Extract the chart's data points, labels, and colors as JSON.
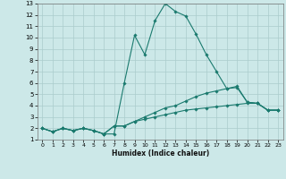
{
  "xlabel": "Humidex (Indice chaleur)",
  "ylabel": "",
  "xlim": [
    -0.5,
    23.5
  ],
  "ylim": [
    1,
    13
  ],
  "xticks": [
    0,
    1,
    2,
    3,
    4,
    5,
    6,
    7,
    8,
    9,
    10,
    11,
    12,
    13,
    14,
    15,
    16,
    17,
    18,
    19,
    20,
    21,
    22,
    23
  ],
  "yticks": [
    1,
    2,
    3,
    4,
    5,
    6,
    7,
    8,
    9,
    10,
    11,
    12,
    13
  ],
  "bg_color": "#cce8e8",
  "grid_color": "#aacccc",
  "line_color": "#1a7a6e",
  "lines": [
    [
      2.0,
      1.7,
      2.0,
      1.8,
      2.0,
      1.8,
      1.5,
      1.5,
      6.0,
      10.2,
      8.5,
      11.5,
      13.0,
      12.3,
      11.9,
      10.3,
      8.5,
      7.0,
      5.5,
      5.7,
      4.3,
      4.2,
      3.6,
      3.6
    ],
    [
      2.0,
      1.7,
      2.0,
      1.8,
      2.0,
      1.8,
      1.5,
      2.2,
      2.2,
      2.6,
      3.0,
      3.4,
      3.8,
      4.0,
      4.4,
      4.8,
      5.1,
      5.3,
      5.5,
      5.6,
      4.3,
      4.2,
      3.6,
      3.6
    ],
    [
      2.0,
      1.7,
      2.0,
      1.8,
      2.0,
      1.8,
      1.5,
      2.2,
      2.2,
      2.6,
      2.8,
      3.0,
      3.2,
      3.4,
      3.6,
      3.7,
      3.8,
      3.9,
      4.0,
      4.1,
      4.2,
      4.2,
      3.6,
      3.6
    ]
  ]
}
